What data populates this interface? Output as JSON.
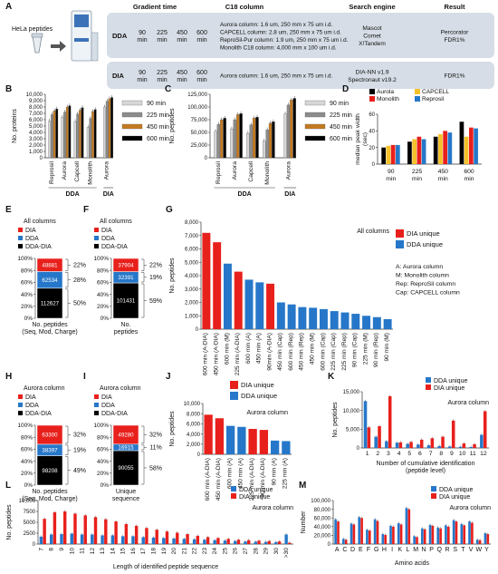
{
  "colors": {
    "dia": "#e8201c",
    "dda": "#2677c9",
    "both": "#000000",
    "aurola": "#000000",
    "capcell": "#f5c12a",
    "monolith": "#e8201c",
    "reprosil": "#2677c9",
    "t90": "#d7d7d7",
    "t225": "#8c8c8c",
    "t450": "#c47a20",
    "t600": "#000000",
    "panelbg": "#d6dde6"
  },
  "panels": [
    "A",
    "B",
    "C",
    "D",
    "E",
    "F",
    "G",
    "H",
    "I",
    "J",
    "K",
    "L",
    "M"
  ],
  "panel_a": {
    "hela_label": "HeLa peptides",
    "headers": [
      "Gradient time",
      "C18 column",
      "Search engine",
      "Result"
    ],
    "rows": [
      {
        "mode": "DDA",
        "times": [
          "90\nmin",
          "225\nmin",
          "450\nmin",
          "600\nmin"
        ],
        "columns": [
          "Aurora column: 1.6 um, 250 mm x 75 um i.d.",
          "CAPCELL column: 2.8 um, 250 mm x 75 um i.d.",
          "ReproSil-Pur column: 1.9 um, 250 mm x 75 um i.d.",
          "Monolith C18 column: 4,000 mm x 100 um i.d."
        ],
        "engines": [
          "Mascot",
          "Comet",
          "X!Tandem"
        ],
        "result": [
          "Percorator",
          "FDR1%"
        ]
      },
      {
        "mode": "DIA",
        "times": [
          "90\nmin",
          "225\nmin",
          "450\nmin",
          "600\nmin"
        ],
        "columns": [
          "Aurora column: 1.6 um, 250 mm x 75 um i.d."
        ],
        "engines": [
          "DIA-NN v1.9",
          "Spectronaut v19.2"
        ],
        "result": [
          "FDR1%"
        ]
      }
    ]
  },
  "chart_data": [
    {
      "panel": "B",
      "type": "bar",
      "ylabel": "No. proteins",
      "ylim": [
        0,
        10000
      ],
      "yticks": [
        "0",
        "1,000",
        "2,000",
        "3,000",
        "4,000",
        "5,000",
        "6,000",
        "7,000",
        "8,000",
        "9,000",
        "10,000"
      ],
      "categories": [
        "Reprosil",
        "Aurora",
        "Capcell",
        "Monolith",
        "Aurora"
      ],
      "groups": [
        {
          "label": "DDA",
          "span": [
            0,
            3
          ]
        },
        {
          "label": "DIA",
          "span": [
            4,
            4
          ]
        }
      ],
      "series": [
        {
          "name": "90 min",
          "values": [
            5800,
            6400,
            5700,
            4800,
            8000
          ]
        },
        {
          "name": "225 min",
          "values": [
            6800,
            7200,
            6900,
            6200,
            8900
          ]
        },
        {
          "name": "450 min",
          "values": [
            7400,
            8000,
            7500,
            7300,
            9300
          ]
        },
        {
          "name": "600 min",
          "values": [
            7700,
            8200,
            7900,
            7600,
            9500
          ]
        }
      ]
    },
    {
      "panel": "C",
      "type": "bar",
      "ylabel": "No. peptides",
      "ylim": [
        0,
        125000
      ],
      "yticks": [
        "0",
        "25,000",
        "50,000",
        "75,000",
        "100,000",
        "125,000"
      ],
      "categories": [
        "Reprosil",
        "Aurora",
        "Capcell",
        "Monolith",
        "Aurora"
      ],
      "groups": [
        {
          "label": "DDA",
          "span": [
            0,
            3
          ]
        },
        {
          "label": "DIA",
          "span": [
            4,
            4
          ]
        }
      ],
      "series": [
        {
          "name": "90 min",
          "values": [
            52000,
            57000,
            48000,
            33000,
            86000
          ]
        },
        {
          "name": "225 min",
          "values": [
            66000,
            75000,
            65000,
            55000,
            104000
          ]
        },
        {
          "name": "450 min",
          "values": [
            75000,
            85000,
            78000,
            68000,
            114000
          ]
        },
        {
          "name": "600 min",
          "values": [
            78000,
            87000,
            80000,
            71000,
            117000
          ]
        }
      ]
    },
    {
      "panel": "D",
      "type": "bar",
      "ylabel": "median peak width\n(sec)",
      "ylim": [
        0,
        60
      ],
      "yticks": [
        "0",
        "20",
        "40",
        "60"
      ],
      "categories": [
        "90\nmin",
        "225\nmin",
        "450\nmin",
        "600\nmin"
      ],
      "series": [
        {
          "name": "Aurola",
          "values": [
            20,
            27,
            33,
            51
          ]
        },
        {
          "name": "CAPCELL",
          "values": [
            22,
            30,
            36,
            33
          ]
        },
        {
          "name": "Monolith",
          "values": [
            23,
            33,
            40,
            44
          ]
        },
        {
          "name": "Reprosil",
          "values": [
            23,
            30,
            38,
            43
          ]
        }
      ]
    },
    {
      "panel": "E",
      "type": "stacked-bar",
      "title": "All columns",
      "legend": [
        "DIA",
        "DDA",
        "DDA-DIA"
      ],
      "yticks": [
        "0%",
        "20%",
        "40%",
        "60%",
        "80%",
        "100%"
      ],
      "xlabel": "No. peptides\n(Seq, Mod, Charge)",
      "segments": [
        {
          "name": "DDA-DIA",
          "value": 112627,
          "pct": "50%"
        },
        {
          "name": "DDA",
          "value": 62534,
          "pct": "28%"
        },
        {
          "name": "DIA",
          "value": 48881,
          "pct": "22%"
        }
      ]
    },
    {
      "panel": "F",
      "type": "stacked-bar",
      "title": "All columns",
      "legend": [
        "DIA",
        "DDA",
        "DDA-DIA"
      ],
      "yticks": [
        "0%",
        "20%",
        "40%",
        "60%",
        "80%",
        "100%"
      ],
      "xlabel": "No.\npeptides",
      "segments": [
        {
          "name": "DDA-DIA",
          "value": 101431,
          "pct": "59%"
        },
        {
          "name": "DDA",
          "value": 32391,
          "pct": "19%"
        },
        {
          "name": "DIA",
          "value": 37904,
          "pct": "22%"
        }
      ]
    },
    {
      "panel": "G",
      "type": "bar",
      "title": "All columns",
      "ylabel": "No. peptides",
      "ylim": [
        0,
        8000
      ],
      "yticks": [
        "0",
        "1,000",
        "2,000",
        "3,000",
        "4,000",
        "5,000",
        "6,000",
        "7,000",
        "8,000"
      ],
      "legend": [
        "DIA unique",
        "DDA unique"
      ],
      "notes": [
        "A: Aurora column",
        "M: Monolith column",
        "Rep: ReproSil column",
        "Cap: CAPCELL column"
      ],
      "categories": [
        "600 min (A-DIA)",
        "450 min (A-DIA)",
        "600 min (M)",
        "225 min (A-DIA)",
        "600 min (A)",
        "450 min (A)",
        "90min (A-DIA)",
        "450 min (Cap)",
        "600 min (Rep)",
        "450 min (Rep)",
        "450 min (M)",
        "600 min (Cap)",
        "225 min (Cap)",
        "225 min (Rep)",
        "90 min (Cap)",
        "225 min (M)",
        "90 min (Rep)",
        "90 min (M)"
      ],
      "kinds": [
        "DIA",
        "DIA",
        "DDA",
        "DIA",
        "DDA",
        "DDA",
        "DIA",
        "DDA",
        "DDA",
        "DDA",
        "DDA",
        "DDA",
        "DDA",
        "DDA",
        "DDA",
        "DDA",
        "DDA",
        "DDA"
      ],
      "values": [
        7200,
        6500,
        4900,
        4300,
        3700,
        3500,
        3400,
        2000,
        1850,
        1650,
        1600,
        1500,
        1350,
        1250,
        1150,
        1000,
        900,
        750
      ]
    },
    {
      "panel": "H",
      "type": "stacked-bar",
      "title": "Aurora column",
      "legend": [
        "DIA",
        "DDA",
        "DDA-DIA"
      ],
      "yticks": [
        "0%",
        "20%",
        "40%",
        "60%",
        "80%",
        "100%"
      ],
      "xlabel": "No. peptides\n(Seq, Mod, Charge)",
      "segments": [
        {
          "name": "DDA-DIA",
          "value": 98208,
          "pct": "49%"
        },
        {
          "name": "DDA",
          "value": 38397,
          "pct": "19%"
        },
        {
          "name": "DIA",
          "value": 63300,
          "pct": "32%"
        }
      ]
    },
    {
      "panel": "I",
      "type": "stacked-bar",
      "title": "Aurora column",
      "legend": [
        "DIA",
        "DDA",
        "DDA-DIA"
      ],
      "yticks": [
        "0%",
        "20%",
        "40%",
        "60%",
        "80%",
        "100%"
      ],
      "xlabel": "Unique\nsequence",
      "segments": [
        {
          "name": "DDA-DIA",
          "value": 90055,
          "pct": "58%"
        },
        {
          "name": "DDA",
          "value": 16915,
          "pct": "11%"
        },
        {
          "name": "DIA",
          "value": 49280,
          "pct": "32%"
        }
      ]
    },
    {
      "panel": "J",
      "type": "bar",
      "title": "Aurora column",
      "ylabel": "No. peptides",
      "ylim": [
        0,
        10000
      ],
      "yticks": [
        "0",
        "2,000",
        "4,000",
        "6,000",
        "8,000",
        "10,000"
      ],
      "legend": [
        "DIA unique",
        "DDA unique"
      ],
      "categories": [
        "600 min (A-DIA)",
        "450 min (A-DIA)",
        "600 min (A)",
        "450 min (A)",
        "225 min (A-DIA)",
        "90 min (A-DIA)",
        "90 min (A)",
        "225 min (A)"
      ],
      "kinds": [
        "DIA",
        "DIA",
        "DDA",
        "DDA",
        "DIA",
        "DIA",
        "DDA",
        "DDA"
      ],
      "values": [
        7800,
        7100,
        5600,
        5400,
        5000,
        4800,
        2700,
        2600
      ]
    },
    {
      "panel": "K",
      "type": "bar",
      "title": "Aurora column",
      "ylabel": "No. peptides",
      "ylim": [
        0,
        15000
      ],
      "yticks": [
        "0",
        "5,000",
        "10,000",
        "15,000"
      ],
      "legend": [
        "DDA unique",
        "DIA unique"
      ],
      "xlabel": "Number of cumulative identification\n(peptide level)",
      "categories": [
        "1",
        "2",
        "3",
        "4",
        "5",
        "6",
        "7",
        "8",
        "9",
        "10",
        "11",
        "12"
      ],
      "series": [
        {
          "name": "DDA unique",
          "values": [
            12500,
            3000,
            1800,
            1400,
            1100,
            900,
            700,
            500,
            400,
            300,
            250,
            3500
          ]
        },
        {
          "name": "DIA unique",
          "values": [
            5500,
            5800,
            13800,
            1500,
            1600,
            2200,
            2600,
            3000,
            7300,
            1200,
            1000,
            9800
          ]
        }
      ]
    },
    {
      "panel": "L",
      "type": "bar",
      "title": "Aurora column",
      "ylabel": "No. peptides",
      "ylim": [
        0,
        10000
      ],
      "yticks": [
        "0",
        "2500",
        "5000",
        "7500",
        "10,000"
      ],
      "legend": [
        "DDA unique",
        "DIA unique"
      ],
      "xlabel": "Length of identified peptide sequence",
      "categories": [
        "7",
        "8",
        "9",
        "10",
        "11",
        "12",
        "13",
        "14",
        "15",
        "16",
        "17",
        "18",
        "19",
        "20",
        "21",
        "22",
        "23",
        "24",
        "25",
        "26",
        "27",
        "28",
        "29",
        "30",
        ">30"
      ],
      "series": [
        {
          "name": "DDA unique",
          "values": [
            1700,
            2200,
            2300,
            2400,
            2200,
            2200,
            2000,
            2000,
            1800,
            1800,
            1600,
            1500,
            1400,
            1300,
            1200,
            1100,
            1000,
            900,
            800,
            700,
            600,
            550,
            500,
            450,
            2200
          ]
        },
        {
          "name": "DIA unique",
          "values": [
            5800,
            7300,
            7500,
            7000,
            6600,
            6200,
            5700,
            5200,
            4600,
            4200,
            3700,
            3300,
            2900,
            2600,
            2300,
            1900,
            1600,
            1400,
            1200,
            1000,
            900,
            800,
            700,
            600,
            300
          ]
        }
      ]
    },
    {
      "panel": "M",
      "type": "bar",
      "ylabel": "Number",
      "ylim": [
        0,
        100000
      ],
      "yticks": [
        "0",
        "20,000",
        "40,000",
        "60,000",
        "80,000",
        "100,000"
      ],
      "legend": [
        "DDA unique",
        "DIA unique"
      ],
      "title": "Aurora column",
      "xlabel": "Amino acids",
      "categories": [
        "A",
        "C",
        "D",
        "E",
        "F",
        "G",
        "H",
        "I",
        "K",
        "L",
        "M",
        "N",
        "P",
        "Q",
        "R",
        "S",
        "T",
        "V",
        "W",
        "Y"
      ],
      "series": [
        {
          "name": "DDA unique",
          "values": [
            57000,
            12000,
            47000,
            62000,
            33000,
            57000,
            23000,
            42000,
            48000,
            83000,
            18000,
            36000,
            44000,
            38000,
            43000,
            55000,
            46000,
            52000,
            10000,
            25000
          ]
        },
        {
          "name": "DIA unique",
          "values": [
            52000,
            10000,
            45000,
            60000,
            31000,
            53000,
            21000,
            40000,
            45000,
            80000,
            16000,
            34000,
            42000,
            36000,
            40000,
            52000,
            43000,
            49000,
            9000,
            23000
          ]
        }
      ]
    }
  ]
}
